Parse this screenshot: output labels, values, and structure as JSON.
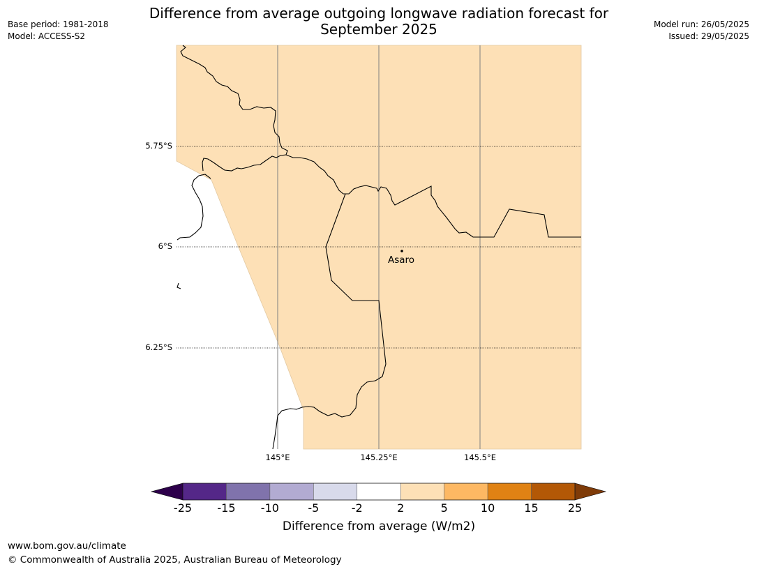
{
  "title_line1": "Difference from average outgoing longwave radiation forecast for",
  "title_line2": "September 2025",
  "base_period": "Base period: 1981-2018",
  "model": "Model: ACCESS-S2",
  "model_run": "Model run: 26/05/2025",
  "issued": "Issued: 29/05/2025",
  "map": {
    "latitudes": [
      "5.75°S",
      "6°S",
      "6.25°S"
    ],
    "longitudes": [
      "145°E",
      "145.25°E",
      "145.5°E"
    ],
    "place": "Asaro",
    "fill_color": "#fde0b6"
  },
  "colorbar": {
    "title": "Difference from average (W/m2)",
    "ticks": [
      "-25",
      "-15",
      "-10",
      "-5",
      "-2",
      "2",
      "5",
      "10",
      "15",
      "25"
    ],
    "colors": [
      "#542788",
      "#8073ac",
      "#b2abd2",
      "#d8daeb",
      "#ffffff",
      "#fde0b6",
      "#fdb863",
      "#e08214",
      "#b35806"
    ],
    "under_color": "#2d004b",
    "over_color": "#7f3b08"
  },
  "footer": {
    "url": "www.bom.gov.au/climate",
    "copyright": "© Commonwealth of Australia 2025, Australian Bureau of Meteorology"
  }
}
